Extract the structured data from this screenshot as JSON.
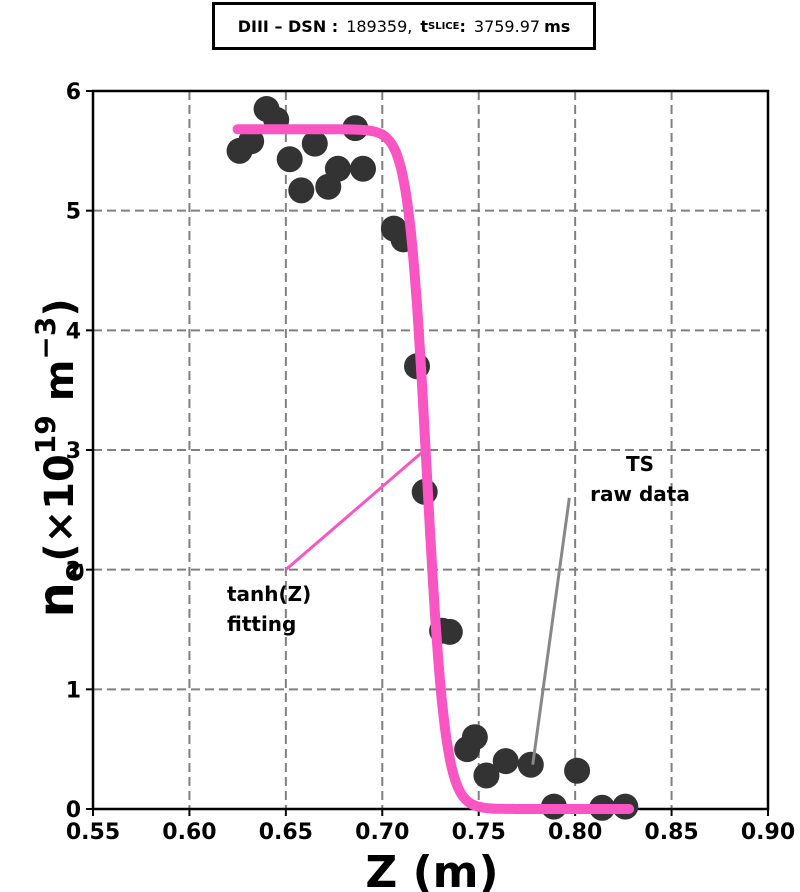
{
  "header": {
    "machine_label": "DIII – DSN :",
    "shot": "189359,",
    "t_label": "t",
    "t_sub": "SLICE",
    "t_colon": ":",
    "t_value": "3759.97",
    "t_unit": "ms"
  },
  "chart_data": {
    "type": "scatter",
    "xlabel": "Z (m)",
    "ylabel_main": "n",
    "ylabel_sub": "e",
    "ylabel_rest": "(×10",
    "ylabel_exp": "19",
    "ylabel_unit": " m",
    "ylabel_unit_exp": "−3",
    "ylabel_close": ")",
    "xlim": [
      0.55,
      0.9
    ],
    "ylim": [
      0,
      6
    ],
    "xticks": [
      0.55,
      0.6,
      0.65,
      0.7,
      0.75,
      0.8,
      0.85,
      0.9
    ],
    "xtick_labels": [
      "0.55",
      "0.60",
      "0.65",
      "0.70",
      "0.75",
      "0.80",
      "0.85",
      "0.90"
    ],
    "yticks": [
      0,
      1,
      2,
      3,
      4,
      5,
      6
    ],
    "ytick_labels": [
      "0",
      "1",
      "2",
      "3",
      "4",
      "5",
      "6"
    ],
    "grid": true,
    "series": [
      {
        "kind": "scatter",
        "color": "#333333",
        "points": [
          [
            0.626,
            5.5
          ],
          [
            0.632,
            5.58
          ],
          [
            0.64,
            5.85
          ],
          [
            0.645,
            5.76
          ],
          [
            0.652,
            5.43
          ],
          [
            0.658,
            5.17
          ],
          [
            0.665,
            5.56
          ],
          [
            0.672,
            5.2
          ],
          [
            0.677,
            5.35
          ],
          [
            0.686,
            5.69
          ],
          [
            0.69,
            5.35
          ],
          [
            0.706,
            4.85
          ],
          [
            0.711,
            4.76
          ],
          [
            0.718,
            3.7
          ],
          [
            0.722,
            2.65
          ],
          [
            0.731,
            1.49
          ],
          [
            0.735,
            1.48
          ],
          [
            0.744,
            0.5
          ],
          [
            0.748,
            0.6
          ],
          [
            0.754,
            0.28
          ],
          [
            0.764,
            0.4
          ],
          [
            0.777,
            0.37
          ],
          [
            0.801,
            0.32
          ],
          [
            0.789,
            0.02
          ],
          [
            0.814,
            0.01
          ],
          [
            0.826,
            0.02
          ]
        ]
      },
      {
        "kind": "line",
        "color": "#f956c4",
        "model": "tanh",
        "params": {
          "top": 5.68,
          "bottom": 0.0,
          "center": 0.723,
          "width": 0.0095
        },
        "x_range": [
          0.625,
          0.828
        ]
      }
    ],
    "annotations": [
      {
        "text_lines": [
          "tanh(Z)",
          "fitting"
        ],
        "line_color": "#f956c4",
        "from": [
          0.65,
          2.0
        ],
        "to": [
          0.722,
          3.0
        ]
      },
      {
        "text_lines": [
          "TS",
          "raw data"
        ],
        "line_color": "#888888",
        "from": [
          0.778,
          0.37
        ],
        "to": [
          0.797,
          2.6
        ]
      }
    ]
  }
}
